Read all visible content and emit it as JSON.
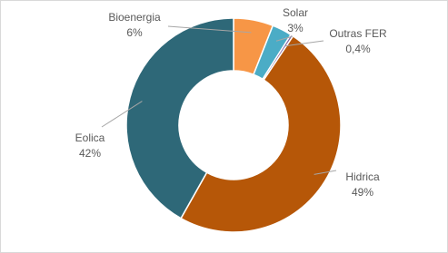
{
  "chart_data": {
    "type": "donut",
    "categories": [
      "Bioenergia",
      "Solar",
      "Outras FER",
      "Hidrica",
      "Eolica"
    ],
    "values": [
      6,
      3,
      0.4,
      49,
      42
    ],
    "value_labels": [
      "6%",
      "3%",
      "0,4%",
      "49%",
      "42%"
    ],
    "colors": [
      "#f79646",
      "#4bacc6",
      "#8064a2",
      "#b65708",
      "#2e6878"
    ]
  }
}
